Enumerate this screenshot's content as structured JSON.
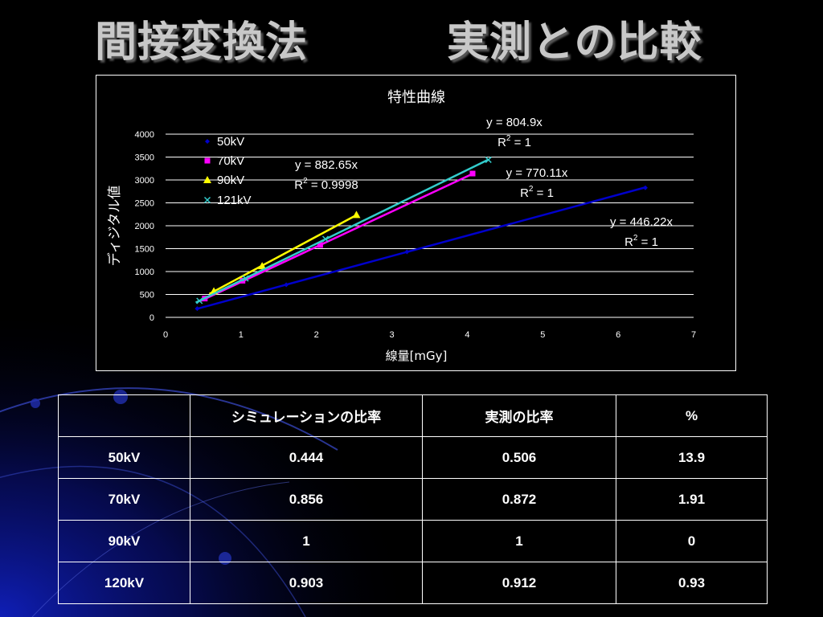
{
  "slide": {
    "title_left": "間接変換法",
    "title_right": "実測との比較"
  },
  "colors": {
    "background": "#000000",
    "title_text": "#c8c8c8",
    "series_50kV": "#0000cc",
    "series_70kV": "#ff00ff",
    "series_90kV": "#ffff00",
    "series_121kV": "#33cccc"
  },
  "chart_data": {
    "type": "scatter",
    "title": "特性曲線",
    "xlabel": "線量[mGy]",
    "ylabel": "ディジタル値",
    "xlim": [
      0,
      7
    ],
    "ylim": [
      0,
      4000
    ],
    "x_ticks": [
      "0",
      "1",
      "2",
      "3",
      "4",
      "5",
      "6",
      "7"
    ],
    "y_ticks": [
      "0",
      "500",
      "1000",
      "1500",
      "2000",
      "2500",
      "3000",
      "3500",
      "4000"
    ],
    "grid": "horizontal",
    "legend_position": "top-left",
    "series": [
      {
        "name": "50kV",
        "marker": "diamond",
        "color": "#0000cc",
        "points": [
          [
            0.42,
            190
          ],
          [
            1.6,
            710
          ],
          [
            3.2,
            1430
          ],
          [
            6.36,
            2830
          ]
        ],
        "trendline_x": [
          0.4,
          6.36
        ],
        "equation": "y = 446.22x",
        "r2_prefix": "R",
        "r2_exp": "2",
        "r2_value": " = 1"
      },
      {
        "name": "70kV",
        "marker": "square",
        "color": "#ff00ff",
        "points": [
          [
            0.52,
            410
          ],
          [
            1.02,
            800
          ],
          [
            2.05,
            1580
          ],
          [
            4.07,
            3140
          ]
        ],
        "trendline_x": [
          0.45,
          4.07
        ],
        "equation": "y = 770.11x",
        "r2_prefix": "R",
        "r2_exp": "2",
        "r2_value": " = 1"
      },
      {
        "name": "90kV",
        "marker": "triangle",
        "color": "#ffff00",
        "points": [
          [
            0.64,
            570
          ],
          [
            1.28,
            1120
          ],
          [
            2.53,
            2240
          ]
        ],
        "trendline_x": [
          0.58,
          2.53
        ],
        "equation": "y = 882.65x",
        "r2_prefix": "R",
        "r2_exp": "2",
        "r2_value": " = 0.9998"
      },
      {
        "name": "121kV",
        "marker": "x",
        "color": "#33cccc",
        "points": [
          [
            0.45,
            360
          ],
          [
            1.06,
            850
          ],
          [
            2.12,
            1710
          ],
          [
            4.28,
            3440
          ]
        ],
        "trendline_x": [
          0.4,
          4.28
        ],
        "equation": "y = 804.9x",
        "r2_prefix": "R",
        "r2_exp": "2",
        "r2_value": " = 1"
      }
    ]
  },
  "table": {
    "headers": [
      "",
      "シミュレーションの比率",
      "実測の比率",
      "%"
    ],
    "rows": [
      [
        "50kV",
        "0.444",
        "0.506",
        "13.9"
      ],
      [
        "70kV",
        "0.856",
        "0.872",
        "1.91"
      ],
      [
        "90kV",
        "1",
        "1",
        "0"
      ],
      [
        "120kV",
        "0.903",
        "0.912",
        "0.93"
      ]
    ]
  }
}
